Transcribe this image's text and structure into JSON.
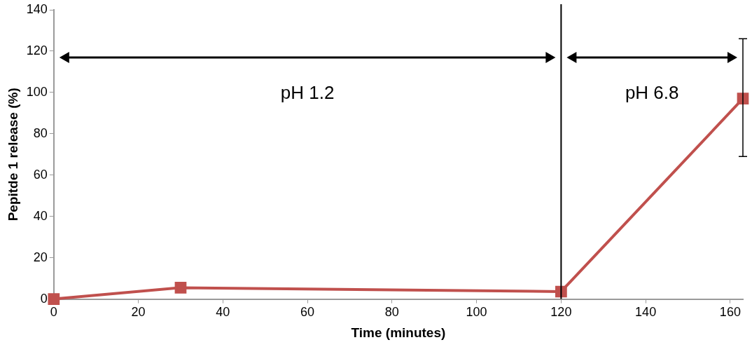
{
  "chart_data": {
    "type": "line",
    "xlabel": "Time (minutes)",
    "ylabel": "Pepitde 1 release (%)",
    "x": [
      0,
      30,
      120,
      163
    ],
    "series": [
      {
        "color": "#c0504d",
        "values": [
          0,
          5.5,
          3.6,
          97
        ],
        "errors": [
          null,
          null,
          null,
          [
            69,
            126
          ]
        ]
      }
    ],
    "xlim": [
      0,
      163
    ],
    "xticks": [
      0,
      20,
      40,
      60,
      80,
      100,
      120,
      140,
      160
    ],
    "ylim": [
      0,
      140
    ],
    "yticks": [
      0,
      20,
      40,
      60,
      80,
      100,
      120,
      140
    ],
    "ref_lines": [
      {
        "axis": "x",
        "value": 120,
        "color": "#000000"
      }
    ],
    "annotations": [
      "pH 1.2",
      "pH 6.8"
    ],
    "grid": false,
    "legend": false,
    "marker": "square",
    "line_style": "solid"
  }
}
